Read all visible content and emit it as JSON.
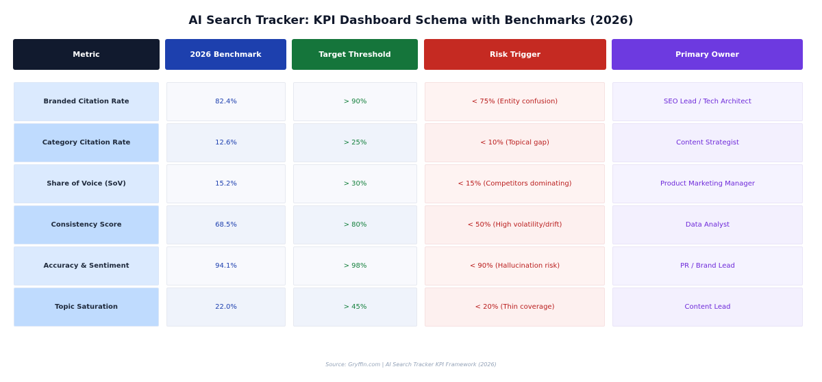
{
  "chart_data": {
    "type": "table",
    "title": "AI Search Tracker: KPI Dashboard Schema with Benchmarks (2026)",
    "columns": [
      {
        "label": "Metric",
        "color": "#111a2e"
      },
      {
        "label": "2026 Benchmark",
        "color": "#1d40ae"
      },
      {
        "label": "Target Threshold",
        "color": "#15753b"
      },
      {
        "label": "Risk Trigger",
        "color": "#c52a22"
      },
      {
        "label": "Primary Owner",
        "color": "#6d3ae0"
      }
    ],
    "rows": [
      [
        "Branded Citation Rate",
        "82.4%",
        "> 90%",
        "< 75% (Entity confusion)",
        "SEO Lead / Tech Architect"
      ],
      [
        "Category Citation Rate",
        "12.6%",
        "> 25%",
        "< 10% (Topical gap)",
        "Content Strategist"
      ],
      [
        "Share of Voice (SoV)",
        "15.2%",
        "> 30%",
        "< 15% (Competitors dominating)",
        "Product Marketing Manager"
      ],
      [
        "Consistency Score",
        "68.5%",
        "> 80%",
        "< 50% (High volatility/drift)",
        "Data Analyst"
      ],
      [
        "Accuracy & Sentiment",
        "94.1%",
        "> 98%",
        "< 90% (Hallucination risk)",
        "PR / Brand Lead"
      ],
      [
        "Topic Saturation",
        "22.0%",
        "> 45%",
        "< 20% (Thin coverage)",
        "Content Lead"
      ]
    ],
    "source": "Source: Gryffin.com | AI Search Tracker KPI Framework (2026)",
    "row_fills": {
      "metric": [
        "#dbeafe",
        "#bfdbfe"
      ],
      "benchmark": [
        "#f8f9fd",
        "#eff3fb"
      ],
      "target": [
        "#f8f9fd",
        "#eff3fb"
      ],
      "risk": [
        "#fef3f2",
        "#fdf0ef"
      ],
      "owner": [
        "#f5f3ff",
        "#f3f0fe"
      ]
    }
  }
}
